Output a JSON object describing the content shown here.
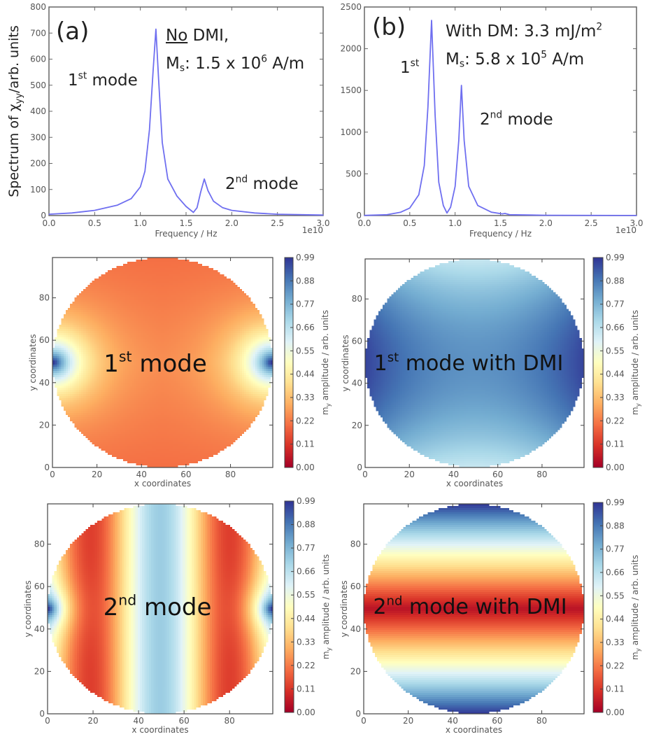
{
  "chart_data": [
    {
      "id": "a",
      "type": "line",
      "panel_label": "(a)",
      "xlabel": "Frequency / Hz",
      "x_offset_label": "1e10",
      "ylabel_prefix": "Spectrum of χ",
      "ylabel_sub": "yy",
      "ylabel_suffix": "/arb. units",
      "xlim": [
        0,
        3.0
      ],
      "ylim": [
        0,
        800
      ],
      "xticks": [
        "0.0",
        "0.5",
        "1.0",
        "1.5",
        "2.0",
        "2.5",
        "3.0"
      ],
      "yticks": [
        "0",
        "100",
        "200",
        "300",
        "400",
        "500",
        "600",
        "700",
        "800"
      ],
      "color": "#6f6ff0",
      "x": [
        0,
        0.25,
        0.5,
        0.75,
        0.9,
        1.0,
        1.05,
        1.1,
        1.14,
        1.17,
        1.2,
        1.24,
        1.3,
        1.4,
        1.5,
        1.58,
        1.62,
        1.66,
        1.7,
        1.74,
        1.8,
        1.9,
        2.0,
        2.25,
        2.5,
        3.0
      ],
      "y": [
        5,
        10,
        20,
        40,
        65,
        110,
        170,
        330,
        560,
        715,
        520,
        280,
        140,
        75,
        35,
        12,
        30,
        90,
        140,
        95,
        55,
        30,
        20,
        10,
        5,
        2
      ],
      "annotations": {
        "line1_under": "No",
        "line1_rest": " DMI,",
        "ms_M": "M",
        "ms_sub": "s",
        "ms_val": ": 1.5 x 10",
        "ms_exp": "6",
        "ms_unit": " A/m",
        "mode1_num": "1",
        "mode1_sup": "st",
        "mode1_word": " mode",
        "mode2_num": "2",
        "mode2_sup": "nd",
        "mode2_word": " mode"
      }
    },
    {
      "id": "b",
      "type": "line",
      "panel_label": "(b)",
      "xlabel": "Frequency / Hz",
      "x_offset_label": "1e10",
      "xlim": [
        0,
        3.0
      ],
      "ylim": [
        0,
        2500
      ],
      "xticks": [
        "0.0",
        "0.5",
        "1.0",
        "1.5",
        "2.0",
        "2.5",
        "3.0"
      ],
      "yticks": [
        "0",
        "500",
        "1000",
        "1500",
        "2000",
        "2500"
      ],
      "color": "#6f6ff0",
      "x": [
        0,
        0.25,
        0.4,
        0.5,
        0.6,
        0.66,
        0.7,
        0.74,
        0.78,
        0.82,
        0.87,
        0.91,
        0.95,
        1.0,
        1.04,
        1.07,
        1.1,
        1.15,
        1.25,
        1.4,
        1.52,
        1.55,
        1.6,
        2.0,
        3.0
      ],
      "y": [
        2,
        10,
        40,
        90,
        250,
        600,
        1300,
        2340,
        1200,
        400,
        120,
        30,
        100,
        350,
        900,
        1560,
        900,
        350,
        120,
        40,
        20,
        25,
        10,
        3,
        1
      ],
      "annotations": {
        "dm_text": "With DM: 3.3 mJ/m",
        "dm_exp": "2",
        "ms_M": "M",
        "ms_sub": "s",
        "ms_val": ": 5.8 x 10",
        "ms_exp": "5",
        "ms_unit": " A/m",
        "mode1_num": "1",
        "mode1_sup": "st",
        "mode2_num": "2",
        "mode2_sup": "nd",
        "mode2_word": " mode"
      }
    },
    {
      "id": "mode1-nodmi",
      "type": "heatmap",
      "pattern": "mode1-nodmi",
      "label_num": "1",
      "label_sup": "st",
      "label_word": " mode",
      "xlabel": "x coordinates",
      "ylabel": "y coordinates",
      "xlim": [
        0,
        99
      ],
      "ylim": [
        0,
        99
      ],
      "ticks": [
        "0",
        "20",
        "40",
        "60",
        "80"
      ],
      "colorbar_ticks": [
        "0.00",
        "0.11",
        "0.22",
        "0.33",
        "0.44",
        "0.55",
        "0.66",
        "0.77",
        "0.88",
        "0.99"
      ],
      "colorbar_label_m": "m",
      "colorbar_label_sub": "y",
      "colorbar_label_rest": " amplitude / arb. units",
      "colormap": "RdYlBu",
      "vmin": 0,
      "vmax": 0.99
    },
    {
      "id": "mode1-dmi",
      "type": "heatmap",
      "pattern": "mode1-dmi",
      "label_num": "1",
      "label_sup": "st",
      "label_word": " mode with DMI",
      "xlabel": "x coordinates",
      "ylabel": "y coordinates",
      "xlim": [
        0,
        99
      ],
      "ylim": [
        0,
        99
      ],
      "ticks": [
        "0",
        "20",
        "40",
        "60",
        "80"
      ],
      "colorbar_ticks": [
        "0.00",
        "0.11",
        "0.22",
        "0.33",
        "0.44",
        "0.55",
        "0.66",
        "0.77",
        "0.88",
        "0.99"
      ],
      "colorbar_label_m": "m",
      "colorbar_label_sub": "y",
      "colorbar_label_rest": " amplitude / arb. units",
      "colormap": "RdYlBu",
      "vmin": 0,
      "vmax": 0.99
    },
    {
      "id": "mode2-nodmi",
      "type": "heatmap",
      "pattern": "mode2-nodmi",
      "label_num": "2",
      "label_sup": "nd",
      "label_word": " mode",
      "xlabel": "x coordinates",
      "ylabel": "y coordinates",
      "xlim": [
        0,
        99
      ],
      "ylim": [
        0,
        99
      ],
      "ticks": [
        "0",
        "20",
        "40",
        "60",
        "80"
      ],
      "colorbar_ticks": [
        "0.00",
        "0.11",
        "0.22",
        "0.33",
        "0.44",
        "0.55",
        "0.66",
        "0.77",
        "0.88",
        "0.99"
      ],
      "colorbar_label_m": "m",
      "colorbar_label_sub": "y",
      "colorbar_label_rest": " amplitude / arb. units",
      "colormap": "RdYlBu",
      "vmin": 0,
      "vmax": 0.99
    },
    {
      "id": "mode2-dmi",
      "type": "heatmap",
      "pattern": "mode2-dmi",
      "label_num": "2",
      "label_sup": "nd",
      "label_word": " mode with DMI",
      "xlabel": "x coordinates",
      "ylabel": "y coordinates",
      "xlim": [
        0,
        99
      ],
      "ylim": [
        0,
        99
      ],
      "ticks": [
        "0",
        "20",
        "40",
        "60",
        "80"
      ],
      "colorbar_ticks": [
        "0.00",
        "0.11",
        "0.22",
        "0.33",
        "0.44",
        "0.55",
        "0.66",
        "0.77",
        "0.88",
        "0.99"
      ],
      "colorbar_label_m": "m",
      "colorbar_label_sub": "y",
      "colorbar_label_rest": " amplitude / arb. units",
      "colormap": "RdYlBu",
      "vmin": 0,
      "vmax": 0.99
    }
  ]
}
